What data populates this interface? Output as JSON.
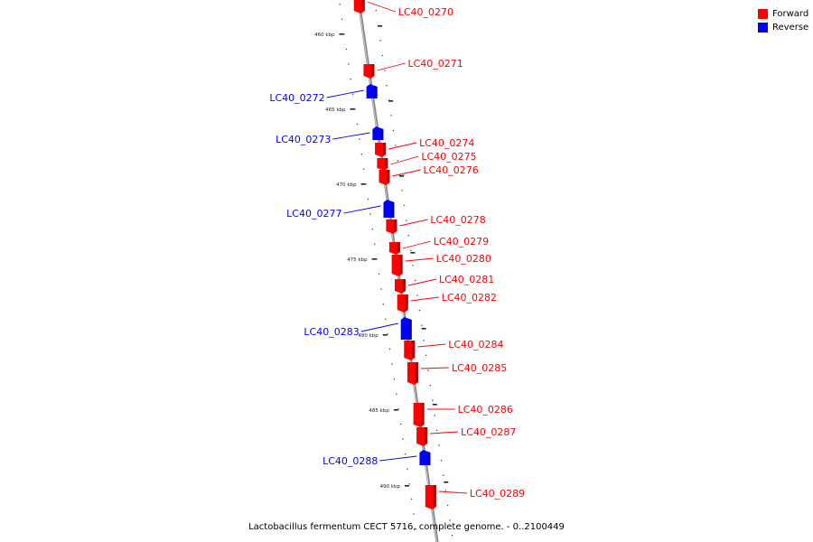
{
  "legend": {
    "forward_label": "Forward",
    "reverse_label": "Reverse",
    "forward_color": "#ff0000",
    "reverse_color": "#0000ff"
  },
  "caption": "Lactobacillus fermentum CECT 5716, complete genome. - 0..2100449",
  "scale_labels": [
    "460 kbp",
    "465 kbp",
    "470 kbp",
    "475 kbp",
    "480 kbp",
    "485 kbp",
    "490 kbp"
  ],
  "genes": [
    {
      "name": "LC40_0270",
      "strand": "forward"
    },
    {
      "name": "LC40_0271",
      "strand": "forward"
    },
    {
      "name": "LC40_0272",
      "strand": "reverse"
    },
    {
      "name": "LC40_0273",
      "strand": "reverse"
    },
    {
      "name": "LC40_0274",
      "strand": "forward"
    },
    {
      "name": "LC40_0275",
      "strand": "forward"
    },
    {
      "name": "LC40_0276",
      "strand": "forward"
    },
    {
      "name": "LC40_0277",
      "strand": "reverse"
    },
    {
      "name": "LC40_0278",
      "strand": "forward"
    },
    {
      "name": "LC40_0279",
      "strand": "forward"
    },
    {
      "name": "LC40_0280",
      "strand": "forward"
    },
    {
      "name": "LC40_0281",
      "strand": "forward"
    },
    {
      "name": "LC40_0282",
      "strand": "forward"
    },
    {
      "name": "LC40_0283",
      "strand": "reverse"
    },
    {
      "name": "LC40_0284",
      "strand": "forward"
    },
    {
      "name": "LC40_0285",
      "strand": "forward"
    },
    {
      "name": "LC40_0286",
      "strand": "forward"
    },
    {
      "name": "LC40_0287",
      "strand": "forward"
    },
    {
      "name": "LC40_0288",
      "strand": "reverse"
    },
    {
      "name": "LC40_0289",
      "strand": "forward"
    }
  ]
}
